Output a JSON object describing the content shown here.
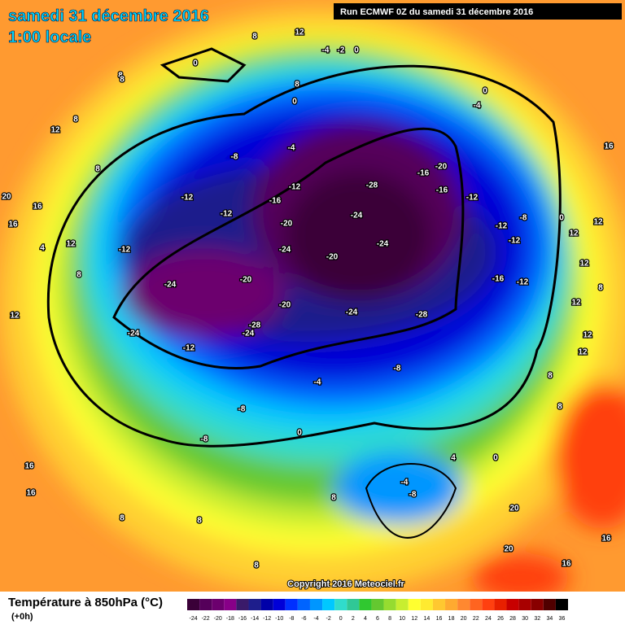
{
  "header": {
    "title": "samedi 31 décembre 2016",
    "subtitle": "1:00 locale",
    "run": "Run ECMWF 0Z du samedi 31 décembre 2016"
  },
  "copyright": "Copyright 2016 Meteociel.fr",
  "footer": {
    "title": "Température à 850hPa (°C)",
    "subtitle": "(+0h)"
  },
  "scale": {
    "values": [
      -24,
      -22,
      -20,
      -18,
      -16,
      -14,
      -12,
      -10,
      -8,
      -6,
      -4,
      -2,
      0,
      2,
      4,
      6,
      8,
      10,
      12,
      14,
      16,
      18,
      20,
      22,
      24,
      26,
      28,
      30,
      32,
      34,
      36
    ],
    "colors": [
      "#3a0038",
      "#55005a",
      "#6c006e",
      "#880088",
      "#3a1a6a",
      "#1e1e8c",
      "#0000a8",
      "#0000d8",
      "#0030ff",
      "#0064ff",
      "#0096ff",
      "#00c8ff",
      "#30dccc",
      "#30c896",
      "#30c830",
      "#64c830",
      "#96dc30",
      "#c8ee30",
      "#ffff30",
      "#ffea30",
      "#ffc830",
      "#ffaa30",
      "#ff8830",
      "#ff6420",
      "#ff4010",
      "#e82000",
      "#c80000",
      "#a80000",
      "#880000",
      "#500000",
      "#000000"
    ]
  },
  "contour_labels": [
    0,
    8,
    12,
    8,
    12,
    8,
    8,
    16,
    16,
    20,
    4,
    12,
    8,
    12,
    -12,
    -12,
    -12,
    -8,
    -4,
    -12,
    -16,
    -20,
    -24,
    -20,
    -24,
    -24,
    -12,
    -28,
    -24,
    -20,
    -28,
    -24,
    -20,
    -24,
    -24,
    -28,
    -16,
    -20,
    -16,
    -12,
    -12,
    -12,
    -16,
    -12,
    -8,
    0,
    12,
    16,
    12,
    12,
    8,
    12,
    12,
    12,
    8,
    8,
    -8,
    -4,
    -8,
    -8,
    0,
    8,
    -4,
    -8,
    4,
    0,
    20,
    20,
    16,
    16,
    16,
    16,
    8,
    8,
    8,
    0,
    -4,
    0,
    8,
    -4,
    -2,
    0,
    8
  ]
}
